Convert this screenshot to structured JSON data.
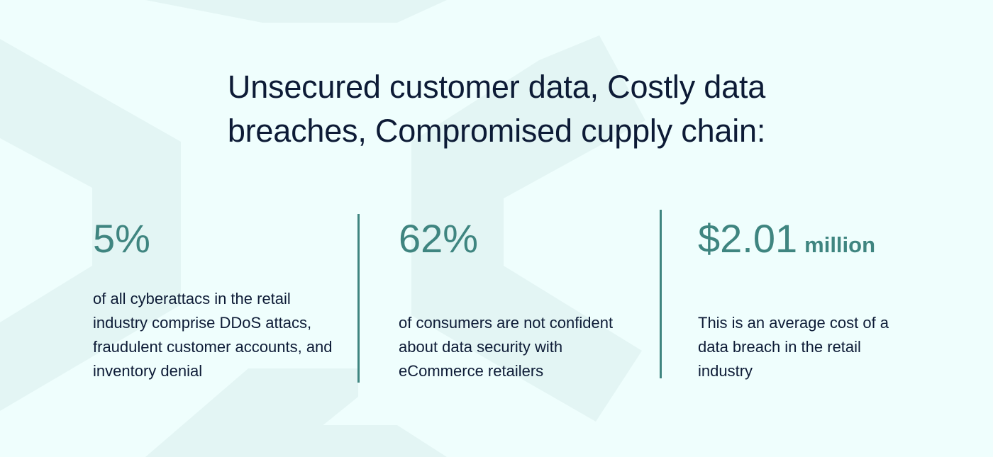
{
  "headline": {
    "line1": "Unsecured customer data, Costly data",
    "line2": "breaches, Compromised cupply chain:"
  },
  "stats": [
    {
      "value": "5%",
      "description": "of all cyberattacs in the retail industry comprise DDoS attacs, fraudulent customer accounts, and inventory denial"
    },
    {
      "value": "62%",
      "description": "of consumers are not confident about data security with eCommerce retailers"
    },
    {
      "value": "$2.01",
      "unit": "million",
      "description": "This is an average cost of a data breach in the retail industry"
    }
  ],
  "colors": {
    "background": "#effefd",
    "shape": "#e1f4f3",
    "accent": "#3f8580",
    "text": "#0d1b36"
  }
}
